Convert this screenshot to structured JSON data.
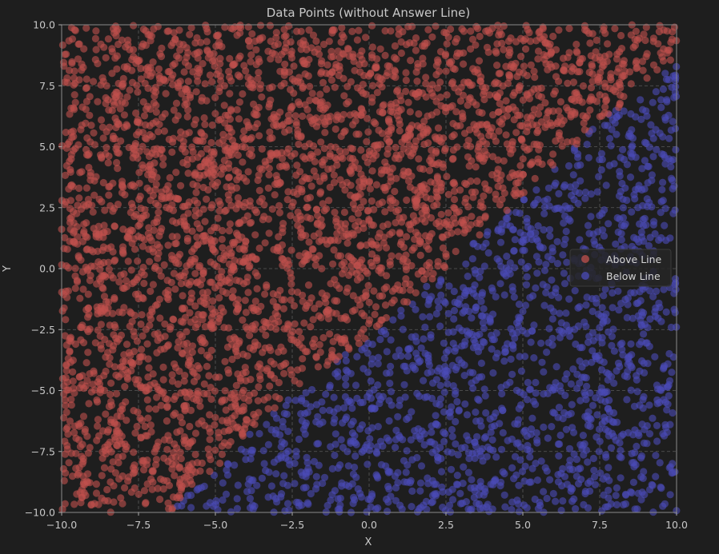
{
  "chart_data": {
    "type": "scatter",
    "title": "Data Points (without Answer Line)",
    "xlabel": "X",
    "ylabel": "Y",
    "xlim": [
      -10,
      10
    ],
    "ylim": [
      -10,
      10
    ],
    "grid": true,
    "xticks": [
      -10,
      -7.5,
      -5,
      -2.5,
      0,
      2.5,
      5,
      7.5,
      10
    ],
    "yticks": [
      -10,
      -7.5,
      -5,
      -2.5,
      0,
      2.5,
      5,
      7.5,
      10
    ],
    "xtick_labels": [
      "−10.0",
      "−7.5",
      "−5.0",
      "−2.5",
      "0.0",
      "2.5",
      "5.0",
      "7.5",
      "10.0"
    ],
    "ytick_labels": [
      "−10.0",
      "−7.5",
      "−5.0",
      "−2.5",
      "0.0",
      "2.5",
      "5.0",
      "7.5",
      "10.0"
    ],
    "legend_position": "center-right",
    "boundary_points": [
      [
        -6.5,
        -10
      ],
      [
        -5,
        -8.2
      ],
      [
        -2.5,
        -5
      ],
      [
        0,
        -2.8
      ],
      [
        2.5,
        0
      ],
      [
        5,
        3
      ],
      [
        7.5,
        6
      ],
      [
        10,
        8.4
      ]
    ],
    "series": [
      {
        "name": "Above Line",
        "color": "#c0504d",
        "side": "above",
        "count": 3400
      },
      {
        "name": "Below Line",
        "color": "#4b4bb8",
        "side": "below",
        "count": 1600
      }
    ]
  }
}
